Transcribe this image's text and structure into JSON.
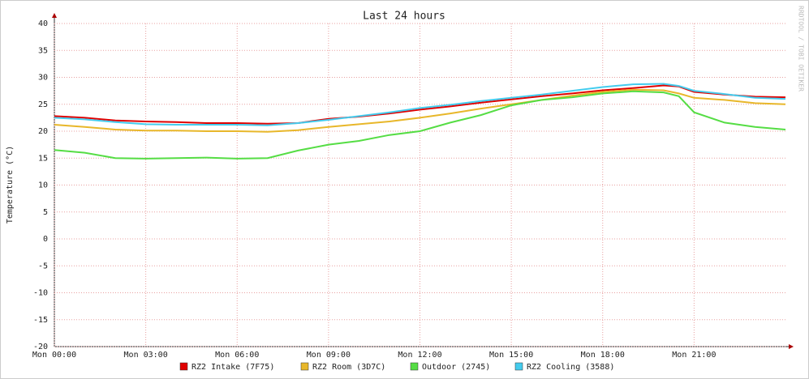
{
  "chart_data": {
    "type": "line",
    "title": "Last 24 hours",
    "y_label": "Temperature (°C)",
    "watermark": "RRDTOOL / TOBI OETIKER",
    "x": [
      0,
      1,
      2,
      3,
      4,
      5,
      6,
      7,
      8,
      9,
      10,
      11,
      12,
      13,
      14,
      15,
      16,
      17,
      18,
      19,
      20,
      20.5,
      21,
      22,
      23,
      24
    ],
    "series": [
      {
        "name": "RZ2 Intake (7F75)",
        "color": "#e00000",
        "values": [
          22.8,
          22.5,
          22,
          21.8,
          21.7,
          21.5,
          21.5,
          21.4,
          21.5,
          22.3,
          22.7,
          23.3,
          24,
          24.6,
          25.3,
          25.9,
          26.5,
          27,
          27.6,
          28,
          28.5,
          28.3,
          27.3,
          26.8,
          26.4,
          26.3
        ]
      },
      {
        "name": "RZ2 Room (3D7C)",
        "color": "#e8b72a",
        "values": [
          21.2,
          20.8,
          20.3,
          20.1,
          20.1,
          20,
          20,
          19.9,
          20.2,
          20.8,
          21.3,
          21.8,
          22.5,
          23.3,
          24.2,
          25,
          25.8,
          26.6,
          27.3,
          27.7,
          27.6,
          27,
          26.2,
          25.8,
          25.2,
          25
        ]
      },
      {
        "name": "Outdoor (2745)",
        "color": "#55dd44",
        "values": [
          16.5,
          16,
          15,
          14.9,
          15,
          15.1,
          14.9,
          15,
          16.4,
          17.5,
          18.2,
          19.3,
          20,
          21.6,
          23,
          24.8,
          25.8,
          26.3,
          27,
          27.4,
          27.2,
          26.5,
          23.5,
          21.6,
          20.8,
          20.3
        ]
      },
      {
        "name": "RZ2 Cooling (3588)",
        "color": "#44ccee",
        "values": [
          22.5,
          22.2,
          21.7,
          21.3,
          21.2,
          21.2,
          21.2,
          21.1,
          21.5,
          22.1,
          22.8,
          23.5,
          24.3,
          24.9,
          25.6,
          26.2,
          26.8,
          27.5,
          28.2,
          28.7,
          28.8,
          28.4,
          27.5,
          26.9,
          26.2,
          26
        ]
      }
    ],
    "xlim": [
      0,
      24
    ],
    "xticks": [
      {
        "value": 0,
        "label": "Mon 00:00"
      },
      {
        "value": 3,
        "label": "Mon 03:00"
      },
      {
        "value": 6,
        "label": "Mon 06:00"
      },
      {
        "value": 9,
        "label": "Mon 09:00"
      },
      {
        "value": 12,
        "label": "Mon 12:00"
      },
      {
        "value": 15,
        "label": "Mon 15:00"
      },
      {
        "value": 18,
        "label": "Mon 18:00"
      },
      {
        "value": 21,
        "label": "Mon 21:00"
      }
    ],
    "ylim": [
      -20,
      40
    ],
    "yticks": [
      -20,
      -15,
      -10,
      -5,
      0,
      5,
      10,
      15,
      20,
      25,
      30,
      35,
      40
    ],
    "grid": true
  }
}
